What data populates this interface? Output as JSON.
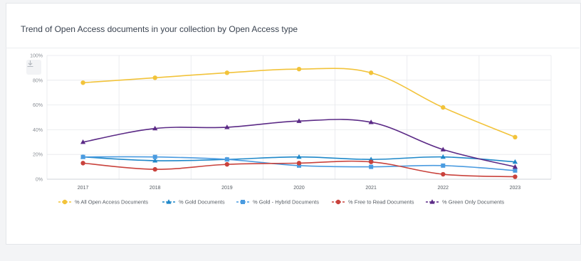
{
  "header": {
    "title": "Trend of Open Access documents in your collection by Open Access type"
  },
  "toolbar": {
    "download_icon": "download-icon"
  },
  "chart_data": {
    "type": "line",
    "title": "Trend of Open Access documents in your collection by Open Access type",
    "x": [
      "2017",
      "2018",
      "2019",
      "2020",
      "2021",
      "2022",
      "2023"
    ],
    "y_ticks": [
      "0%",
      "20%",
      "40%",
      "60%",
      "80%",
      "100%"
    ],
    "ylim": [
      0,
      100
    ],
    "grid": true,
    "legend_position": "bottom",
    "series": [
      {
        "name": "% All Open Access Documents",
        "color": "#f2c33a",
        "marker": "circle",
        "values": [
          78,
          82,
          86,
          89,
          86,
          58,
          34
        ]
      },
      {
        "name": "% Gold Documents",
        "color": "#1f88c9",
        "marker": "triangle",
        "values": [
          18,
          15,
          16,
          18,
          16,
          18,
          14
        ]
      },
      {
        "name": "% Gold - Hybrid Documents",
        "color": "#4a9be0",
        "marker": "square",
        "values": [
          18,
          18,
          16,
          11,
          10,
          11,
          7
        ]
      },
      {
        "name": "% Free to Read Documents",
        "color": "#c9423c",
        "marker": "circle",
        "values": [
          13,
          8,
          12,
          13,
          14,
          4,
          2
        ]
      },
      {
        "name": "% Green Only Documents",
        "color": "#5b2a86",
        "marker": "triangle",
        "values": [
          30,
          41,
          42,
          47,
          46,
          24,
          10
        ]
      }
    ]
  }
}
